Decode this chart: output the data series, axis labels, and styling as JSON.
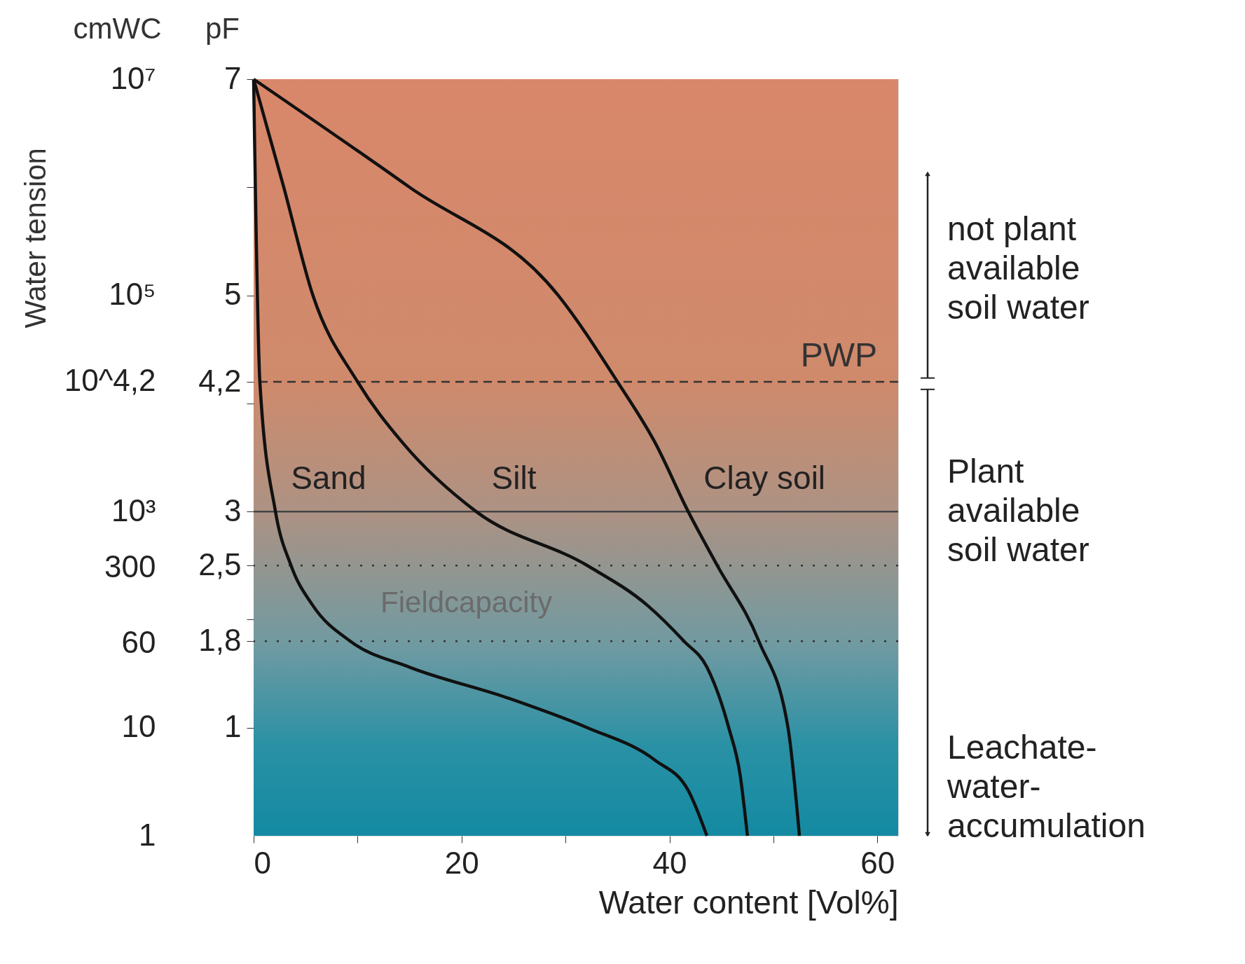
{
  "chart_data": {
    "type": "line",
    "xlabel": "Water content [Vol%]",
    "ylabel": "pF",
    "y2label": "cmWC",
    "xlim": [
      0,
      62
    ],
    "xticks": [
      0,
      {
        "value": 10,
        "label": null
      },
      20,
      {
        "value": 30,
        "label": null
      },
      40,
      {
        "value": 50,
        "label": null
      },
      60
    ],
    "ylim": [
      0,
      7
    ],
    "yticks": [
      1,
      {
        "value": 1.8,
        "label": "1,8"
      },
      {
        "value": 2,
        "label": null
      },
      {
        "value": 2.5,
        "label": "2,5"
      },
      3,
      {
        "value": 4,
        "label": null
      },
      {
        "value": 4.2,
        "label": "4,2"
      },
      5,
      {
        "value": 6,
        "label": null
      },
      7
    ],
    "y2lim": [
      1,
      10000000
    ],
    "log": "y2",
    "y2ticks": [
      1,
      10,
      60,
      300,
      {
        "value": 1000,
        "label": "10³"
      },
      {
        "value": 15849,
        "label": "10^4,2"
      },
      {
        "value": 100000,
        "label": "10⁵"
      },
      {
        "value": 10000000,
        "label": "10⁷"
      }
    ],
    "grid": false,
    "marker": "none",
    "line_style": "solid",
    "series": [
      {
        "name": "Sand",
        "color": "#111111",
        "x": [
          0,
          0.6,
          2.1,
          3.6,
          5.7,
          9.3,
          15,
          24.3,
          32.1,
          38.6,
          41.8,
          43.6
        ],
        "values": [
          7,
          4.2,
          3,
          2.5,
          2.13,
          1.8,
          1.56,
          1.28,
          1.0,
          0.7,
          0.42,
          0
        ]
      },
      {
        "name": "Silt",
        "color": "#111111",
        "x": [
          0,
          2.9,
          5.7,
          10,
          14.3,
          21.4,
          32.1,
          37.9,
          41.4,
          43.6,
          45.7,
          46.8,
          47.5
        ],
        "values": [
          7,
          6,
          5,
          4.2,
          3.64,
          3,
          2.5,
          2.13,
          1.8,
          1.56,
          1.0,
          0.56,
          0
        ]
      },
      {
        "name": "Clay soil",
        "color": "#111111",
        "x": [
          0,
          15,
          29.3,
          35,
          38.6,
          41.8,
          44.6,
          48.6,
          51.4,
          52.5
        ],
        "values": [
          7,
          6,
          5,
          4.2,
          3.64,
          3,
          2.5,
          1.8,
          1.0,
          0
        ]
      }
    ],
    "ref_lines": [
      {
        "axis": "y",
        "value": 4.2,
        "label": "PWP",
        "line_style": "dashed",
        "color": "#333333"
      },
      {
        "axis": "y",
        "value": 3,
        "label": null,
        "line_style": "solid",
        "color": "#444444"
      },
      {
        "axis": "y",
        "value": 2.5,
        "label": null,
        "line_style": "dotted",
        "color": "#333333"
      },
      {
        "axis": "y",
        "value": 1.8,
        "label": null,
        "line_style": "dotted",
        "color": "#333333"
      }
    ],
    "annotations": [
      "Water tension",
      "Fieldcapacity",
      "not plant\navailable\nsoil water",
      "Plant\navailable\nsoil water",
      "Leachate-\nwater-\naccumulation"
    ]
  }
}
